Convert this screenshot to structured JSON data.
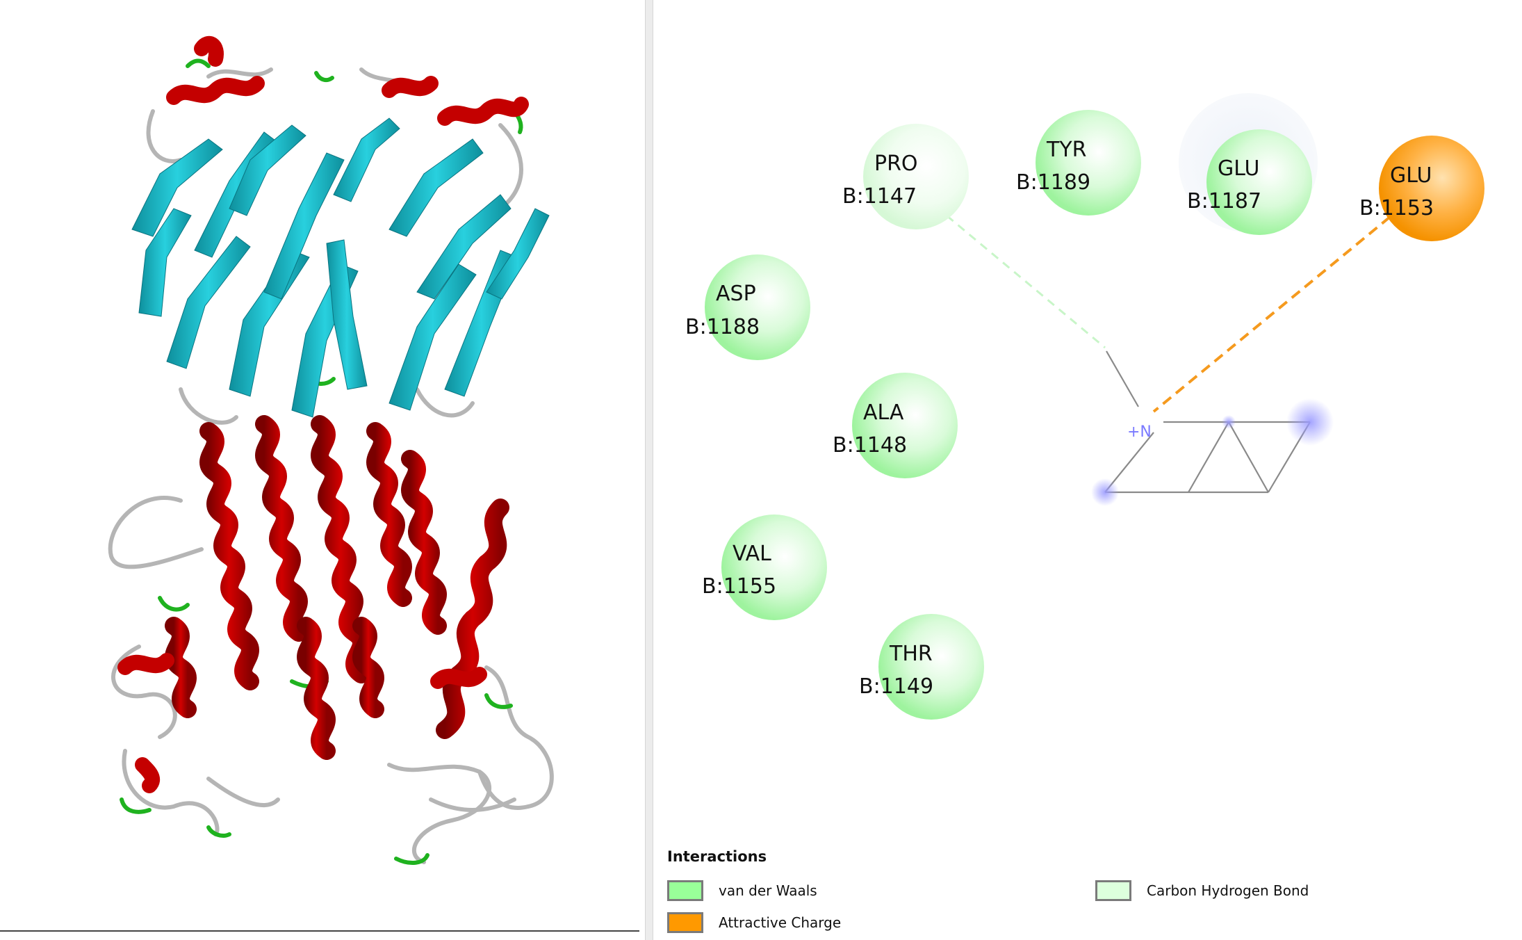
{
  "diagram": {
    "residues": [
      {
        "name": "PRO",
        "id": "B:1147",
        "type": "carbon_hydrogen"
      },
      {
        "name": "TYR",
        "id": "B:1189",
        "type": "vdw"
      },
      {
        "name": "GLU",
        "id": "B:1187",
        "type": "vdw"
      },
      {
        "name": "GLU",
        "id": "B:1153",
        "type": "attractive_charge"
      },
      {
        "name": "ASP",
        "id": "B:1188",
        "type": "vdw"
      },
      {
        "name": "ALA",
        "id": "B:1148",
        "type": "vdw"
      },
      {
        "name": "VAL",
        "id": "B:1155",
        "type": "vdw"
      },
      {
        "name": "THR",
        "id": "B:1149",
        "type": "vdw"
      }
    ],
    "ligand_atom_label": "+N"
  },
  "legend": {
    "title": "Interactions",
    "items": [
      {
        "label": "van der Waals",
        "color": "#99ff99"
      },
      {
        "label": "Attractive Charge",
        "color": "#ff9900"
      },
      {
        "label": "Carbon Hydrogen Bond",
        "color": "#ddffdd"
      }
    ]
  },
  "colors": {
    "helix": "#c00000",
    "sheet": "#1ab8c8",
    "coil": "#b8b8b8",
    "turn": "#22bb22",
    "ligand": "#8a8a8a",
    "nitrogen": "#6a6aff"
  }
}
